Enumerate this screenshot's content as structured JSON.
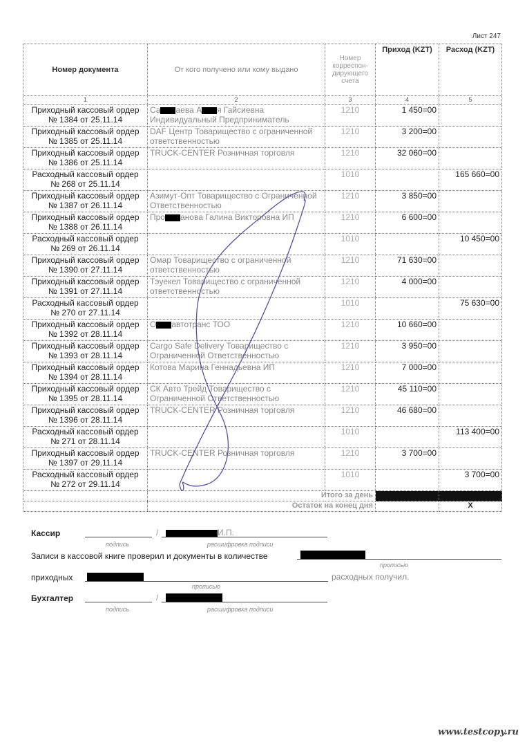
{
  "sheet_label": "Лист 247",
  "headers": [
    "Номер документа",
    "От кого получено или кому выдано",
    "Номер корреспон-дирующего счета",
    "Приход (KZT)",
    "Расход (KZT)"
  ],
  "column_numbers": [
    "1",
    "2",
    "3",
    "4",
    "5"
  ],
  "rows": [
    {
      "doc1": "Приходный кассовый ордер",
      "doc2": "№ 1384 от 25.11.14",
      "who": [
        "Са",
        null,
        "аева А",
        null,
        "я Гайсиевна Индивидуальный Предприниматель"
      ],
      "acc": "1210",
      "in": "1 450=00",
      "out": ""
    },
    {
      "doc1": "Приходный кассовый ордер",
      "doc2": "№ 1385 от 25.11.14",
      "who": [
        "DAF Центр Товарищество с ограниченной ответственностью"
      ],
      "acc": "1210",
      "in": "3 200=00",
      "out": ""
    },
    {
      "doc1": "Приходный кассовый ордер",
      "doc2": "№ 1386 от 25.11.14",
      "who": [
        "TRUCK-CENTER Розничная торговля"
      ],
      "acc": "1210",
      "in": "32 060=00",
      "out": ""
    },
    {
      "doc1": "Расходный кассовый ордер",
      "doc2": "№ 268 от 25.11.14",
      "who": [],
      "acc": "1010",
      "in": "",
      "out": "165 660=00"
    },
    {
      "doc1": "Приходный кассовый ордер",
      "doc2": "№ 1387 от 26.11.14",
      "who": [
        "Азимут-Опт Товарищество с Ограниченной Ответственностью"
      ],
      "acc": "1210",
      "in": "3 850=00",
      "out": ""
    },
    {
      "doc1": "Приходный кассовый ордер",
      "doc2": "№ 1388 от 26.11.14",
      "who": [
        "Про",
        null,
        "анова Галина Викторовна ИП"
      ],
      "acc": "1210",
      "in": "6 600=00",
      "out": ""
    },
    {
      "doc1": "Расходный кассовый ордер",
      "doc2": "№ 269 от 26.11.14",
      "who": [],
      "acc": "1010",
      "in": "",
      "out": "10 450=00"
    },
    {
      "doc1": "Приходный кассовый ордер",
      "doc2": "№ 1390 от 27.11.14",
      "who": [
        "Омар Товарищество с ограниченной ответственностью"
      ],
      "acc": "1210",
      "in": "71 630=00",
      "out": ""
    },
    {
      "doc1": "Приходный кассовый ордер",
      "doc2": "№ 1391 от 27.11.14",
      "who": [
        "Тэуекел Товарищество с ограниченной ответственностью"
      ],
      "acc": "1210",
      "in": "4 000=00",
      "out": ""
    },
    {
      "doc1": "Расходный кассовый ордер",
      "doc2": "№ 270 от 27.11.14",
      "who": [],
      "acc": "1010",
      "in": "",
      "out": "75 630=00"
    },
    {
      "doc1": "Приходный кассовый ордер",
      "doc2": "№ 1392 от 28.11.14",
      "who": [
        "О",
        null,
        "автотранс ТОО"
      ],
      "acc": "1210",
      "in": "10 660=00",
      "out": ""
    },
    {
      "doc1": "Приходный кассовый ордер",
      "doc2": "№ 1393 от 28.11.14",
      "who": [
        "Cargo Safe Delivery Товарищество с Ограниченной Ответственностью"
      ],
      "acc": "1210",
      "in": "3 950=00",
      "out": ""
    },
    {
      "doc1": "Приходный кассовый ордер",
      "doc2": "№ 1394 от 28.11.14",
      "who": [
        "Котова Марина Геннадьевна ИП"
      ],
      "acc": "1210",
      "in": "7 000=00",
      "out": ""
    },
    {
      "doc1": "Приходный кассовый ордер",
      "doc2": "№ 1395 от 28.11.14",
      "who": [
        "СК Авто Трейд Товарищество с Ограниченной Ответственностью"
      ],
      "acc": "1210",
      "in": "45 110=00",
      "out": ""
    },
    {
      "doc1": "Приходный кассовый ордер",
      "doc2": "№ 1396 от 28.11.14",
      "who": [
        "TRUCK-CENTER Розничная торговля"
      ],
      "acc": "1210",
      "in": "46 680=00",
      "out": ""
    },
    {
      "doc1": "Расходный кассовый ордер",
      "doc2": "№ 271 от 28.11.14",
      "who": [],
      "acc": "1010",
      "in": "",
      "out": "113 400=00"
    },
    {
      "doc1": "Приходный кассовый ордер",
      "doc2": "№ 1397 от 29.11.14",
      "who": [
        "TRUCK-CENTER Розничная торговля"
      ],
      "acc": "1210",
      "in": "3 700=00",
      "out": ""
    },
    {
      "doc1": "Расходный кассовый ордер",
      "doc2": "№ 272 от 29.11.14",
      "who": [],
      "acc": "1010",
      "in": "",
      "out": "3 700=00"
    }
  ],
  "totals": {
    "day_label": "Итого за день",
    "balance_label": "Остаток на конец  дня",
    "balance_out": "X"
  },
  "footer": {
    "cashier_label": "Кассир",
    "cashier_name_suffix": "И.П.",
    "signature_caption": "подпись",
    "decode_caption": "расшифровка подписи",
    "checked_text": "Записи в кассовой книге проверил и документы в количестве",
    "in_words_caption": "прописью",
    "incoming_label": "приходных",
    "outgoing_text": "расходных получил.",
    "accountant_label": "Бухгалтер"
  },
  "watermark": "www.testcopy.ru",
  "ink_color": "#5a4fa0"
}
